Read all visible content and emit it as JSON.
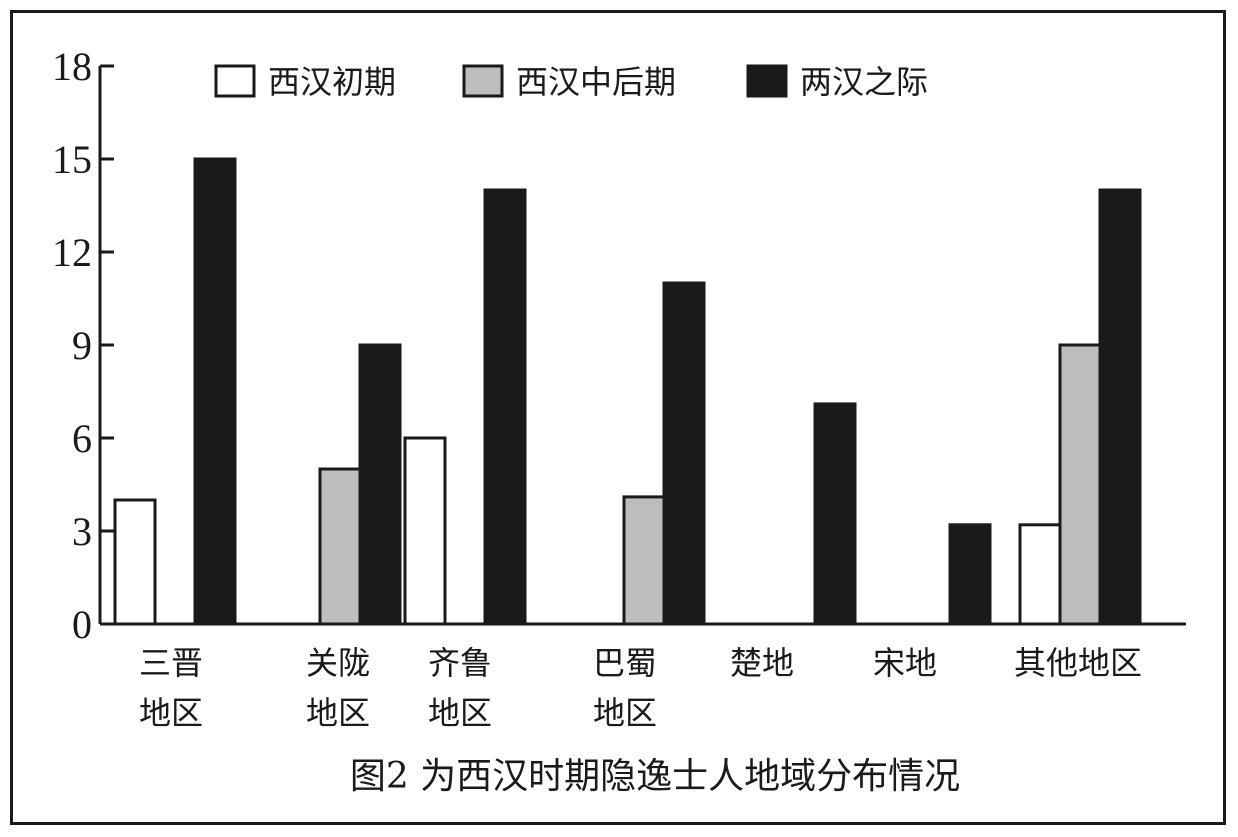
{
  "chart_data": {
    "type": "bar",
    "title": "",
    "caption": "图2 为西汉时期隐逸士人地域分布情况",
    "xlabel": "",
    "ylabel": "",
    "ylim": [
      0,
      18
    ],
    "yticks": [
      "0",
      "3",
      "6",
      "9",
      "12",
      "15",
      "18"
    ],
    "grid": false,
    "legend_position": "top",
    "categories": [
      [
        "三晋",
        "地区"
      ],
      [
        "关陇",
        "地区"
      ],
      [
        "齐鲁",
        "地区"
      ],
      [
        "巴蜀",
        "地区"
      ],
      [
        "楚地"
      ],
      [
        "宋地"
      ],
      [
        "其他地区"
      ]
    ],
    "series": [
      {
        "name": "西汉初期",
        "color": "#ffffff",
        "values": [
          4,
          0,
          6,
          0,
          0,
          0,
          3.2
        ]
      },
      {
        "name": "西汉中后期",
        "color": "#bdbdbd",
        "values": [
          0,
          5,
          0,
          4.1,
          0,
          0,
          9
        ]
      },
      {
        "name": "两汉之际",
        "color": "#1a1a1a",
        "values": [
          15,
          9,
          14,
          11,
          7.1,
          3.2,
          14
        ]
      }
    ]
  }
}
